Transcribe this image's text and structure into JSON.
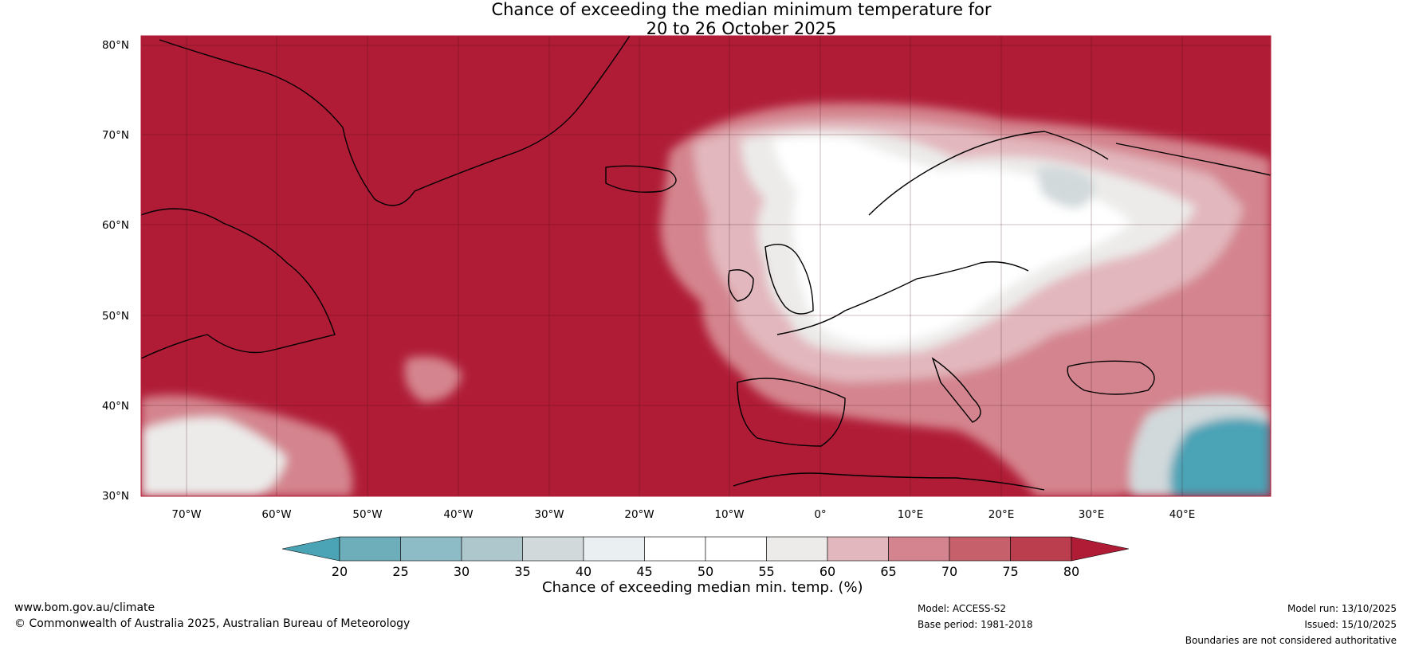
{
  "title": {
    "line1": "Chance of exceeding the median minimum temperature for",
    "line2": "20 to 26 October 2025"
  },
  "map": {
    "lat_labels": [
      "80°N",
      "70°N",
      "60°N",
      "50°N",
      "40°N",
      "30°N"
    ],
    "lon_labels": [
      "70°W",
      "60°W",
      "50°W",
      "40°W",
      "30°W",
      "20°W",
      "10°W",
      "0°",
      "10°E",
      "20°E",
      "30°E",
      "40°E"
    ],
    "background_color": "#b01c36"
  },
  "colorbar": {
    "ticks": [
      "20",
      "25",
      "30",
      "35",
      "40",
      "45",
      "50",
      "55",
      "60",
      "65",
      "70",
      "75",
      "80"
    ],
    "colors": [
      "#4ba3b6",
      "#6eaebb",
      "#8dbcc6",
      "#aec7cd",
      "#d1d9db",
      "#eaf0f2",
      "#ffffff",
      "#ffffff",
      "#ecebea",
      "#e2b7bd",
      "#d4848e",
      "#c6616c",
      "#ba3e4d",
      "#b01c36"
    ],
    "label": "Chance of exceeding median min. temp. (%)"
  },
  "footer": {
    "website": "www.bom.gov.au/climate",
    "copyright": "© Commonwealth of Australia 2025, Australian Bureau of Meteorology",
    "model": "Model: ACCESS-S2",
    "base_period": "Base period: 1981-2018",
    "model_run": "Model run: 13/10/2025",
    "issued": "Issued: 15/10/2025",
    "disclaimer": "Boundaries are not considered authoritative"
  }
}
